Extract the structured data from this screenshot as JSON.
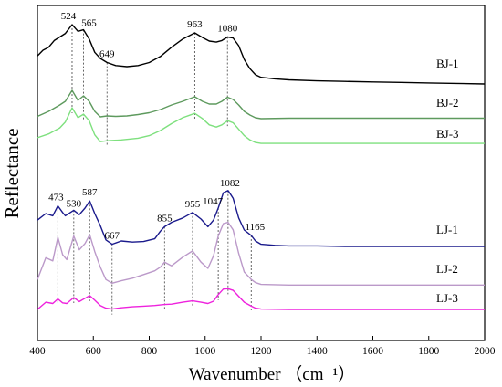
{
  "chart_data": {
    "type": "line",
    "xlabel": "Wavenumber （cm⁻¹）",
    "ylabel": "Reflectance",
    "xlim": [
      400,
      2000
    ],
    "xticks": [
      400,
      600,
      800,
      1000,
      1200,
      1400,
      1600,
      1800,
      2000
    ],
    "y_ticks_labeled": false,
    "grid": false,
    "legend": "labels at right end of each curve",
    "series": [
      {
        "name": "BJ-1",
        "color": "#000000",
        "x": [
          400,
          420,
          440,
          460,
          480,
          500,
          524,
          545,
          565,
          585,
          605,
          625,
          649,
          680,
          720,
          760,
          800,
          840,
          880,
          920,
          963,
          990,
          1015,
          1040,
          1060,
          1080,
          1100,
          1120,
          1140,
          1160,
          1180,
          1200,
          1250,
          1300,
          1400,
          1500,
          1600,
          1700,
          1800,
          1900,
          2000
        ],
        "y": [
          0.55,
          0.66,
          0.72,
          0.85,
          0.92,
          0.99,
          1.16,
          1.03,
          1.06,
          0.88,
          0.62,
          0.5,
          0.42,
          0.36,
          0.34,
          0.36,
          0.42,
          0.54,
          0.72,
          0.88,
          1.0,
          0.91,
          0.84,
          0.82,
          0.85,
          0.92,
          0.9,
          0.75,
          0.48,
          0.3,
          0.18,
          0.13,
          0.1,
          0.08,
          0.06,
          0.05,
          0.04,
          0.03,
          0.02,
          0.01,
          0.0
        ]
      },
      {
        "name": "BJ-2",
        "color": "#5e9a5e",
        "x": [
          400,
          440,
          480,
          500,
          524,
          545,
          565,
          585,
          605,
          625,
          649,
          680,
          720,
          760,
          800,
          840,
          880,
          920,
          963,
          990,
          1015,
          1040,
          1060,
          1080,
          1100,
          1120,
          1140,
          1160,
          1180,
          1200,
          1300,
          1400,
          1600,
          1800,
          2000
        ],
        "y": [
          0.05,
          0.16,
          0.3,
          0.38,
          0.62,
          0.4,
          0.5,
          0.38,
          0.16,
          0.04,
          0.06,
          0.05,
          0.06,
          0.09,
          0.13,
          0.2,
          0.3,
          0.38,
          0.48,
          0.38,
          0.32,
          0.32,
          0.38,
          0.47,
          0.42,
          0.3,
          0.16,
          0.08,
          0.02,
          0.0,
          0.01,
          0.01,
          0.01,
          0.01,
          0.01
        ]
      },
      {
        "name": "BJ-3",
        "color": "#7ee07e",
        "x": [
          400,
          440,
          480,
          500,
          524,
          545,
          565,
          585,
          605,
          625,
          649,
          700,
          760,
          800,
          840,
          880,
          920,
          963,
          990,
          1015,
          1040,
          1060,
          1080,
          1100,
          1120,
          1140,
          1160,
          1180,
          1200,
          1300,
          1400,
          1600,
          1800,
          2000
        ],
        "y": [
          0.15,
          0.24,
          0.38,
          0.52,
          0.85,
          0.62,
          0.7,
          0.55,
          0.22,
          0.06,
          0.08,
          0.1,
          0.14,
          0.2,
          0.32,
          0.48,
          0.62,
          0.72,
          0.6,
          0.45,
          0.4,
          0.45,
          0.55,
          0.5,
          0.35,
          0.2,
          0.1,
          0.04,
          0.02,
          0.02,
          0.02,
          0.02,
          0.02,
          0.02
        ]
      },
      {
        "name": "LJ-1",
        "color": "#1a1a8c",
        "x": [
          400,
          430,
          455,
          473,
          490,
          500,
          530,
          550,
          570,
          587,
          605,
          625,
          645,
          667,
          700,
          740,
          780,
          820,
          840,
          855,
          880,
          920,
          955,
          985,
          1010,
          1030,
          1047,
          1065,
          1082,
          1100,
          1120,
          1140,
          1165,
          1180,
          1200,
          1250,
          1300,
          1400,
          1500,
          1600,
          1700,
          1800,
          1900,
          2000
        ],
        "y": [
          0.48,
          0.6,
          0.56,
          0.74,
          0.62,
          0.56,
          0.66,
          0.58,
          0.7,
          0.83,
          0.6,
          0.38,
          0.12,
          0.04,
          0.1,
          0.08,
          0.09,
          0.14,
          0.28,
          0.36,
          0.44,
          0.52,
          0.62,
          0.5,
          0.36,
          0.48,
          0.7,
          0.98,
          1.02,
          0.88,
          0.52,
          0.3,
          0.2,
          0.1,
          0.04,
          0.02,
          0.01,
          0.01,
          0.0,
          0.0,
          0.0,
          0.0,
          0.0,
          0.0
        ]
      },
      {
        "name": "LJ-2",
        "color": "#bb99c9",
        "x": [
          400,
          430,
          455,
          473,
          490,
          505,
          530,
          550,
          570,
          587,
          605,
          625,
          645,
          667,
          700,
          740,
          780,
          820,
          840,
          855,
          880,
          920,
          955,
          985,
          1010,
          1030,
          1047,
          1065,
          1082,
          1100,
          1120,
          1140,
          1165,
          1180,
          1200,
          1300,
          1400,
          1600,
          1800,
          2000
        ],
        "y": [
          0.1,
          0.45,
          0.4,
          0.78,
          0.5,
          0.42,
          0.8,
          0.58,
          0.68,
          0.82,
          0.55,
          0.3,
          0.1,
          0.04,
          0.08,
          0.12,
          0.18,
          0.24,
          0.3,
          0.38,
          0.32,
          0.46,
          0.56,
          0.38,
          0.28,
          0.48,
          0.8,
          1.0,
          1.02,
          0.9,
          0.52,
          0.22,
          0.1,
          0.05,
          0.02,
          0.01,
          0.01,
          0.01,
          0.01,
          0.01
        ]
      },
      {
        "name": "LJ-3",
        "color": "#ee22dd",
        "x": [
          400,
          430,
          455,
          473,
          490,
          505,
          530,
          550,
          570,
          587,
          605,
          625,
          645,
          667,
          700,
          740,
          780,
          820,
          855,
          880,
          920,
          955,
          985,
          1010,
          1030,
          1047,
          1065,
          1082,
          1100,
          1120,
          1140,
          1165,
          1180,
          1200,
          1300,
          1400,
          1600,
          1800,
          2000
        ],
        "y": [
          0.0,
          0.22,
          0.18,
          0.32,
          0.2,
          0.18,
          0.36,
          0.24,
          0.34,
          0.42,
          0.28,
          0.12,
          0.04,
          0.01,
          0.05,
          0.08,
          0.1,
          0.12,
          0.15,
          0.16,
          0.22,
          0.26,
          0.22,
          0.18,
          0.25,
          0.45,
          0.62,
          0.63,
          0.58,
          0.4,
          0.22,
          0.1,
          0.04,
          0.01,
          0.0,
          0.0,
          0.0,
          0.0,
          0.0
        ]
      }
    ],
    "peak_groups": [
      {
        "group": "BJ",
        "labels": [
          "524",
          "565",
          "649",
          "963",
          "1080"
        ],
        "positions": [
          524,
          565,
          649,
          963,
          1080
        ]
      },
      {
        "group": "LJ",
        "labels": [
          "473",
          "530",
          "587",
          "667",
          "855",
          "955",
          "1047",
          "1082",
          "1165"
        ],
        "positions": [
          473,
          530,
          587,
          667,
          855,
          955,
          1047,
          1082,
          1165
        ]
      }
    ]
  }
}
